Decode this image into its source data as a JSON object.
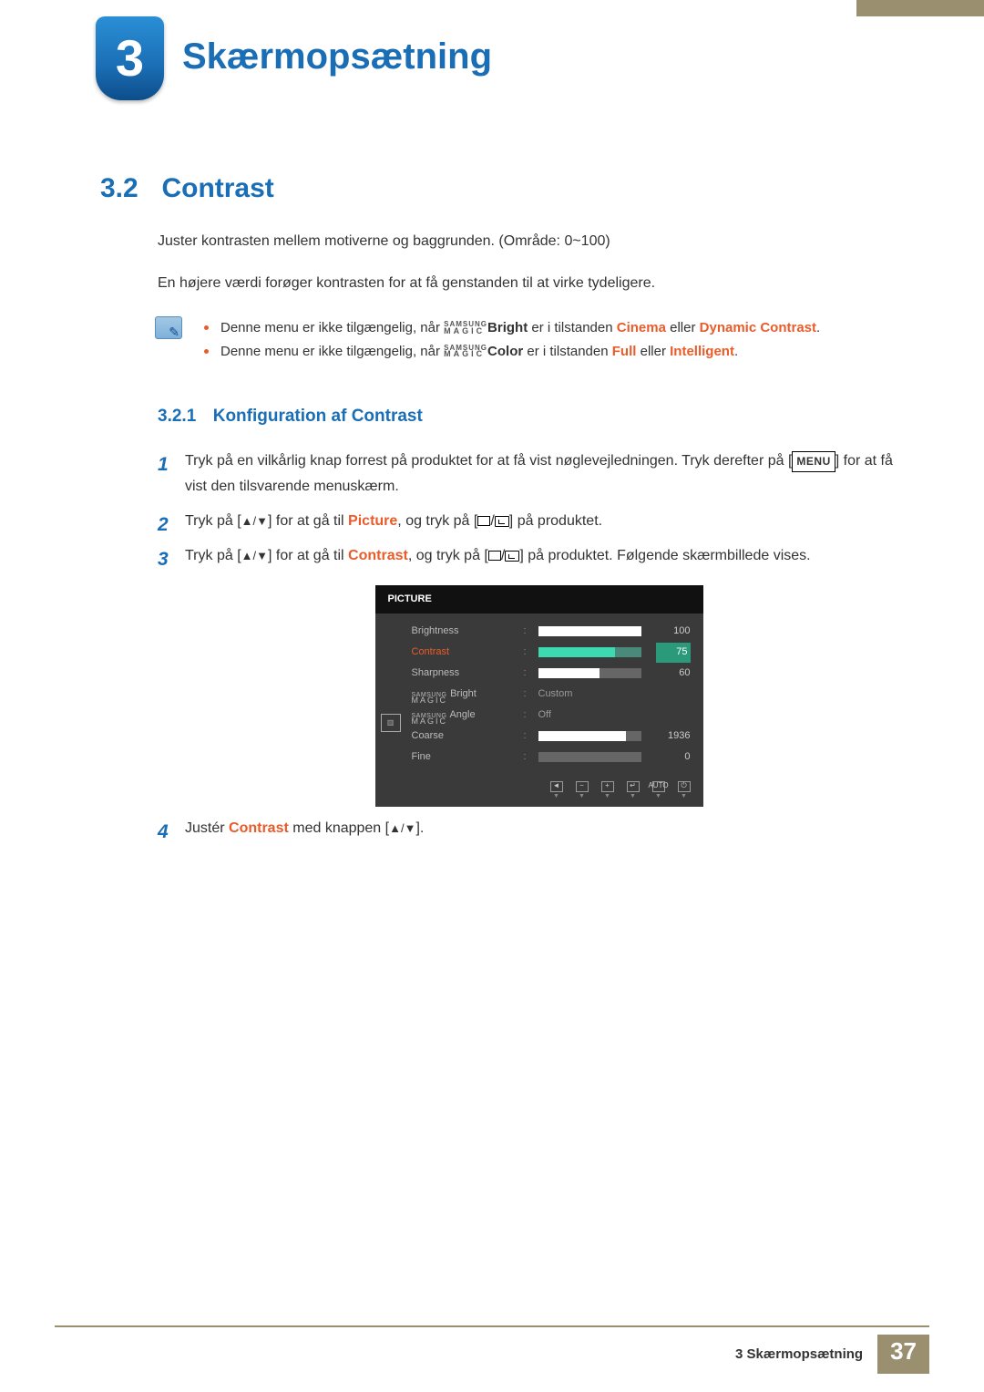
{
  "chapter": {
    "number": "3",
    "title": "Skærmopsætning"
  },
  "section": {
    "number": "3.2",
    "title": "Contrast"
  },
  "intro": {
    "p1": "Juster kontrasten mellem motiverne og baggrunden. (Område: 0~100)",
    "p2": "En højere værdi forøger kontrasten for at få genstanden til at virke tydeligere."
  },
  "notes": {
    "line1_prefix": "Denne menu er ikke tilgængelig, når ",
    "line1_term1": "Bright",
    "line1_mid": " er i tilstanden ",
    "line1_hl1": "Cinema",
    "line1_join": " eller ",
    "line1_hl2": "Dynamic Contrast",
    "line2_prefix": "Denne menu er ikke tilgængelig, når ",
    "line2_term1": "Color",
    "line2_mid": " er i tilstanden ",
    "line2_hl1": "Full",
    "line2_join": " eller ",
    "line2_hl2": "Intelligent",
    "magic": {
      "top": "SAMSUNG",
      "bot": "MAGIC"
    }
  },
  "subsection": {
    "number": "3.2.1",
    "title": "Konfiguration af Contrast"
  },
  "steps": {
    "s1a": "Tryk på en vilkårlig knap forrest på produktet for at få vist nøglevejledningen. Tryk derefter på [",
    "s1_menu": "MENU",
    "s1b": "] for at få vist den tilsvarende menuskærm.",
    "s2a": "Tryk på [",
    "s2b": "] for at gå til ",
    "s2_term": "Picture",
    "s2c": ", og tryk på [",
    "s2d": "] på produktet.",
    "s3a": "Tryk på [",
    "s3b": "] for at gå til ",
    "s3_term": "Contrast",
    "s3c": ", og tryk på [",
    "s3d": "] på produktet. Følgende skærmbillede vises.",
    "s4a": "Justér ",
    "s4_term": "Contrast",
    "s4b": " med knappen [",
    "s4c": "]."
  },
  "osd": {
    "header": "PICTURE",
    "items": [
      {
        "label": "Brightness",
        "type": "slider",
        "value": 100,
        "fill_pct": 100,
        "selected": false
      },
      {
        "label": "Contrast",
        "type": "slider",
        "value": 75,
        "fill_pct": 75,
        "selected": true
      },
      {
        "label": "Sharpness",
        "type": "slider",
        "value": 60,
        "fill_pct": 60,
        "selected": false
      },
      {
        "label": "MAGIC Bright",
        "type": "text",
        "text": "Custom",
        "magic": true
      },
      {
        "label": "MAGIC Angle",
        "type": "text",
        "text": "Off",
        "magic": true
      },
      {
        "label": "Coarse",
        "type": "slider",
        "value": 1936,
        "fill_pct": 85,
        "selected": false
      },
      {
        "label": "Fine",
        "type": "slider",
        "value": 0,
        "fill_pct": 0,
        "selected": false
      }
    ],
    "footer": [
      "◄",
      "−",
      "+",
      "↵",
      "AUTO",
      "⏻"
    ],
    "left_badge": "▥",
    "colors": {
      "bg": "#3a3a3a",
      "header_bg": "#111111",
      "label": "#bbbbbb",
      "slider_bg": "#666666",
      "slider_fill": "#ffffff",
      "sel_label": "#e85c2b",
      "sel_slider_bg": "#4a8a7a",
      "sel_slider_fill": "#3dd9b0",
      "sel_value_bg": "#2a9a7a"
    }
  },
  "footer": {
    "text": "3 Skærmopsætning",
    "page": "37"
  },
  "palette": {
    "blue": "#1a6eb5",
    "accent": "#9a8f6e",
    "orange": "#e85c2b",
    "text": "#333333"
  }
}
